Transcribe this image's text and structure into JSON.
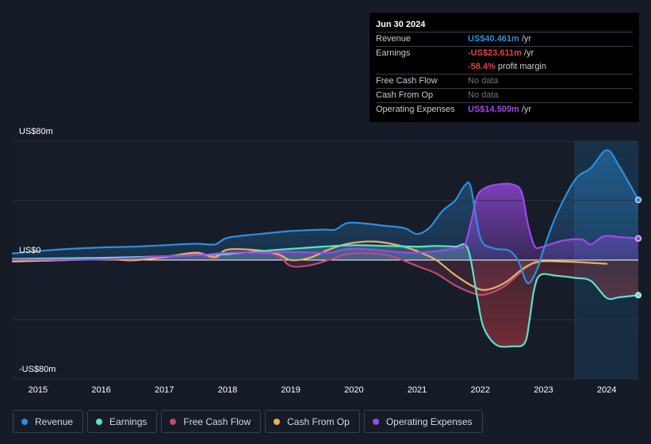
{
  "colors": {
    "revenue": "#2e8ede",
    "earnings": "#5ce0cb",
    "free_cash_flow": "#c04a78",
    "cash_from_op": "#e8b061",
    "operating_expenses": "#9d4ae8",
    "negative_red": "#e0434b"
  },
  "tooltip": {
    "date": "Jun 30 2024",
    "rows": [
      {
        "label": "Revenue",
        "value": "US$40.461m",
        "unit": "/yr",
        "color": "#2e8ede"
      },
      {
        "label": "Earnings",
        "value": "-US$23.611m",
        "unit": "/yr",
        "color": "#e0434b"
      },
      {
        "label": "",
        "value": "-58.4%",
        "unit": "profit margin",
        "color": "#e0434b"
      },
      {
        "label": "Free Cash Flow",
        "value": "No data",
        "unit": "",
        "color": "#6e737c"
      },
      {
        "label": "Cash From Op",
        "value": "No data",
        "unit": "",
        "color": "#6e737c"
      },
      {
        "label": "Operating Expenses",
        "value": "US$14.509m",
        "unit": "/yr",
        "color": "#9d4ae8"
      }
    ]
  },
  "legend": [
    {
      "label": "Revenue",
      "color": "#2e8ede"
    },
    {
      "label": "Earnings",
      "color": "#5ce0cb"
    },
    {
      "label": "Free Cash Flow",
      "color": "#c04a78"
    },
    {
      "label": "Cash From Op",
      "color": "#e8b061"
    },
    {
      "label": "Operating Expenses",
      "color": "#9d4ae8"
    }
  ],
  "chart_data": {
    "type": "area",
    "y_tick_labels": [
      "US$80m",
      "US$0",
      "-US$80m"
    ],
    "ylim": [
      -80,
      80
    ],
    "xlim": [
      2014.6,
      2024.5
    ],
    "x_tick_labels": [
      "2015",
      "2016",
      "2017",
      "2018",
      "2019",
      "2020",
      "2021",
      "2022",
      "2023",
      "2024"
    ],
    "x_ticks": [
      2015,
      2016,
      2017,
      2018,
      2019,
      2020,
      2021,
      2022,
      2023,
      2024
    ],
    "highlight_start": 2023.5,
    "series": [
      {
        "name": "Revenue",
        "key": "revenue",
        "points": [
          [
            2014.6,
            4.5
          ],
          [
            2015.0,
            6.0
          ],
          [
            2015.5,
            7.5
          ],
          [
            2016.0,
            8.5
          ],
          [
            2016.5,
            9.0
          ],
          [
            2017.0,
            10.0
          ],
          [
            2017.5,
            11.0
          ],
          [
            2017.8,
            10.5
          ],
          [
            2018.0,
            15.0
          ],
          [
            2018.5,
            17.5
          ],
          [
            2019.0,
            19.5
          ],
          [
            2019.5,
            20.5
          ],
          [
            2019.7,
            20.5
          ],
          [
            2019.9,
            25.0
          ],
          [
            2020.2,
            24.5
          ],
          [
            2020.5,
            23.0
          ],
          [
            2020.8,
            21.5
          ],
          [
            2021.0,
            17.5
          ],
          [
            2021.2,
            22.0
          ],
          [
            2021.4,
            33.0
          ],
          [
            2021.6,
            40.0
          ],
          [
            2021.75,
            50.0
          ],
          [
            2021.85,
            49.0
          ],
          [
            2022.0,
            15.0
          ],
          [
            2022.2,
            8.0
          ],
          [
            2022.45,
            6.5
          ],
          [
            2022.6,
            -0.5
          ],
          [
            2022.75,
            -15.5
          ],
          [
            2022.9,
            -6.0
          ],
          [
            2023.0,
            7.0
          ],
          [
            2023.2,
            30.0
          ],
          [
            2023.5,
            54.0
          ],
          [
            2023.75,
            62.0
          ],
          [
            2024.0,
            74.0
          ],
          [
            2024.2,
            63.0
          ],
          [
            2024.5,
            40.461
          ]
        ]
      },
      {
        "name": "Earnings",
        "key": "earnings",
        "points": [
          [
            2014.6,
            0.8
          ],
          [
            2015.0,
            1.0
          ],
          [
            2016.0,
            1.5
          ],
          [
            2017.0,
            2.5
          ],
          [
            2017.6,
            3.5
          ],
          [
            2018.0,
            4.0
          ],
          [
            2018.5,
            6.0
          ],
          [
            2019.0,
            7.5
          ],
          [
            2019.5,
            9.0
          ],
          [
            2020.0,
            10.0
          ],
          [
            2020.5,
            9.5
          ],
          [
            2021.0,
            9.0
          ],
          [
            2021.3,
            9.5
          ],
          [
            2021.6,
            9.0
          ],
          [
            2021.8,
            8.0
          ],
          [
            2021.95,
            -25.0
          ],
          [
            2022.05,
            -45.0
          ],
          [
            2022.25,
            -57.0
          ],
          [
            2022.5,
            -58.0
          ],
          [
            2022.7,
            -56.0
          ],
          [
            2022.78,
            -40.0
          ],
          [
            2022.85,
            -20.0
          ],
          [
            2022.95,
            -10.0
          ],
          [
            2023.2,
            -10.5
          ],
          [
            2023.5,
            -12.0
          ],
          [
            2023.75,
            -14.0
          ],
          [
            2024.0,
            -25.5
          ],
          [
            2024.2,
            -25.0
          ],
          [
            2024.5,
            -23.611
          ]
        ]
      },
      {
        "name": "Free Cash Flow",
        "key": "free_cash_flow",
        "points": [
          [
            2014.6,
            0.5
          ],
          [
            2016.0,
            1.0
          ],
          [
            2017.0,
            2.5
          ],
          [
            2017.5,
            4.0
          ],
          [
            2017.8,
            1.5
          ],
          [
            2018.0,
            5.0
          ],
          [
            2018.5,
            5.0
          ],
          [
            2018.8,
            3.0
          ],
          [
            2019.0,
            -4.0
          ],
          [
            2019.3,
            -3.5
          ],
          [
            2019.6,
            0.0
          ],
          [
            2019.9,
            4.0
          ],
          [
            2020.3,
            4.5
          ],
          [
            2020.6,
            2.5
          ],
          [
            2021.0,
            -4.0
          ],
          [
            2021.3,
            -9.0
          ],
          [
            2021.6,
            -17.0
          ],
          [
            2021.9,
            -22.5
          ],
          [
            2022.1,
            -23.0
          ],
          [
            2022.4,
            -17.0
          ],
          [
            2022.7,
            -6.0
          ],
          [
            2022.9,
            -0.5
          ]
        ]
      },
      {
        "name": "Cash From Op",
        "key": "cash_from_op",
        "points": [
          [
            2014.6,
            -1.0
          ],
          [
            2016.0,
            0.5
          ],
          [
            2016.5,
            -0.2
          ],
          [
            2017.0,
            2.0
          ],
          [
            2017.5,
            5.0
          ],
          [
            2017.8,
            2.0
          ],
          [
            2018.0,
            7.0
          ],
          [
            2018.5,
            6.5
          ],
          [
            2018.8,
            4.0
          ],
          [
            2019.0,
            0.0
          ],
          [
            2019.3,
            1.5
          ],
          [
            2019.6,
            7.0
          ],
          [
            2019.9,
            11.0
          ],
          [
            2020.3,
            12.5
          ],
          [
            2020.7,
            10.0
          ],
          [
            2021.0,
            6.0
          ],
          [
            2021.3,
            0.0
          ],
          [
            2021.6,
            -10.0
          ],
          [
            2021.9,
            -18.0
          ],
          [
            2022.1,
            -20.0
          ],
          [
            2022.4,
            -15.0
          ],
          [
            2022.7,
            -5.0
          ],
          [
            2022.95,
            -1.0
          ],
          [
            2023.3,
            -1.0
          ],
          [
            2023.6,
            -1.5
          ],
          [
            2024.0,
            -2.5
          ]
        ]
      },
      {
        "name": "Operating Expenses",
        "key": "operating_expenses",
        "points": [
          [
            2014.6,
            0.3
          ],
          [
            2016.0,
            0.5
          ],
          [
            2017.0,
            2.5
          ],
          [
            2017.6,
            3.5
          ],
          [
            2018.0,
            5.0
          ],
          [
            2018.5,
            5.0
          ],
          [
            2019.0,
            5.5
          ],
          [
            2019.6,
            5.0
          ],
          [
            2019.9,
            7.5
          ],
          [
            2020.3,
            7.0
          ],
          [
            2020.8,
            5.0
          ],
          [
            2021.0,
            5.0
          ],
          [
            2021.3,
            6.0
          ],
          [
            2021.6,
            8.0
          ],
          [
            2021.75,
            10.0
          ],
          [
            2021.85,
            25.0
          ],
          [
            2021.95,
            43.0
          ],
          [
            2022.1,
            49.0
          ],
          [
            2022.3,
            51.0
          ],
          [
            2022.5,
            51.0
          ],
          [
            2022.65,
            46.0
          ],
          [
            2022.75,
            25.0
          ],
          [
            2022.85,
            10.0
          ],
          [
            2022.95,
            8.5
          ],
          [
            2023.3,
            13.0
          ],
          [
            2023.6,
            14.0
          ],
          [
            2023.75,
            10.5
          ],
          [
            2023.95,
            16.0
          ],
          [
            2024.2,
            15.5
          ],
          [
            2024.5,
            14.509
          ]
        ]
      }
    ]
  }
}
